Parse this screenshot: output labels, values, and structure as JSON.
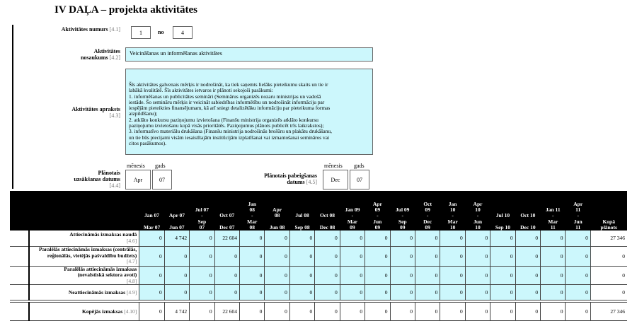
{
  "title": "IV DAĻA – projekta aktivitātes",
  "activity_number": {
    "label": "Aktivitātes numurs",
    "ref": "[4.1]",
    "value": "1",
    "sep": "no",
    "total": "4"
  },
  "activity_name": {
    "label1": "Aktivitātes",
    "label2": "nosaukums",
    "ref": "[4.2]",
    "value": "Veicināšanas un informēšanas aktivitātes"
  },
  "activity_description": {
    "label": "Aktivitātes apraksts",
    "ref": "[4.3]",
    "lines": [
      "Šīs aktivitātes galvenais mērķis ir nodrošināt, ka tiek saņemts lielāks pieteikumu skaits un tie ir",
      "labākā kvalitātē. Šīs aktivitātes ietvaros ir plānoti sekojoši pasākumi:",
      "1. informēšanas un publicitātes semināri (Seminārus organizēs nozaru ministrijas un vadošā",
      "iestāde. Šo semināru mērķis ir veicināt sabiedrības informētību un nodrošināt informāciju par",
      "iespējām pieteikties finansējumam, kā arī sniegt detalizētāku informāciju par pieteikuma formas",
      "aizpildīšanu);",
      "2. atklāto konkursu paziņojumu izvietošana (Finanšu ministrija organizēs atklāto konkursu",
      "paziņojumu izvietošanu kopā visās prioritātēs. Paziņojumus plānots publicēt trīs laikrakstos);",
      "3. informatīvo materiālu drukāšana (Finanšu ministrija nodrošinās brošūru un plakātu drukāšanu,",
      "un tie būs piecijami visām iesaistītajām institūcijām izplatīšanai vai izmantošanai semināros vai",
      "citos pasākumos)."
    ]
  },
  "start": {
    "label1": "Plānotais",
    "label2": "uzsākšanas datums",
    "ref": "[4.4]",
    "month_label": "mēnesis",
    "year_label": "gads",
    "month": "Apr",
    "year": "07"
  },
  "end": {
    "label1": "Plānotais pabeigšanas",
    "label2": "datums",
    "ref": "[4.5]",
    "month_label": "mēnesis",
    "year_label": "gads",
    "month": "Dec",
    "year": "07"
  },
  "finance": {
    "periods": [
      [
        "Jan 07",
        "",
        "Mar 07"
      ],
      [
        "Apr 07",
        "",
        "Jun 07"
      ],
      [
        "Jul 07",
        "-",
        "Sep",
        "07"
      ],
      [
        "Oct 07",
        "",
        "Dec 07"
      ],
      [
        "Jan",
        "08",
        "-",
        "Mar",
        "08"
      ],
      [
        "Apr",
        "08",
        "",
        "Jun 08"
      ],
      [
        "Jul 08",
        "",
        "Sep 08"
      ],
      [
        "Oct 08",
        "",
        "Dec 08"
      ],
      [
        "Jan 09",
        "-",
        "Mar",
        "09"
      ],
      [
        "Apr",
        "09",
        "-",
        "Jun",
        "09"
      ],
      [
        "Jul 09",
        "-",
        "Sep",
        "09"
      ],
      [
        "Oct",
        "09",
        "-",
        "Dec",
        "09"
      ],
      [
        "Jan",
        "10",
        "-",
        "Mar",
        "10"
      ],
      [
        "Apr",
        "10",
        "-",
        "Jun",
        "10"
      ],
      [
        "Jul 10",
        "",
        "Sep 10"
      ],
      [
        "Oct 10",
        "",
        "Dec 10"
      ],
      [
        "Jan 11",
        "-",
        "Mar",
        "11"
      ],
      [
        "Apr",
        "11",
        "-",
        "Jun",
        "11"
      ]
    ],
    "total_header": [
      "Kopā",
      "plānots"
    ],
    "rows": [
      {
        "label": [
          "Attiecināmās izmaksas naudā"
        ],
        "ref": "[4.6]",
        "values": [
          "0",
          "4 742",
          "0",
          "22 604",
          "0",
          "0",
          "0",
          "0",
          "0",
          "0",
          "0",
          "0",
          "0",
          "0",
          "0",
          "0",
          "0",
          "0"
        ],
        "total": "27 346",
        "white": false
      },
      {
        "label": [
          "Paralēlās attiecināmās izmaksas (centrālās,",
          "reģionālās, vietējās pašvaldību budžets)"
        ],
        "ref": "[4.7]",
        "values": [
          "0",
          "0",
          "0",
          "0",
          "0",
          "0",
          "0",
          "0",
          "0",
          "0",
          "0",
          "0",
          "0",
          "0",
          "0",
          "0",
          "0",
          "0"
        ],
        "total": "0",
        "white": false
      },
      {
        "label": [
          "Paralēlās attiecināmās izmaksas",
          "(nevalstiskā sektora avoti)"
        ],
        "ref": "[4.8]",
        "values": [
          "0",
          "0",
          "0",
          "0",
          "0",
          "0",
          "0",
          "0",
          "0",
          "0",
          "0",
          "0",
          "0",
          "0",
          "0",
          "0",
          "0",
          "0"
        ],
        "total": "0",
        "white": false
      },
      {
        "label": [
          "Neattiecināmās izmaksas"
        ],
        "ref": "[4.9]",
        "values": [
          "0",
          "0",
          "0",
          "0",
          "0",
          "0",
          "0",
          "0",
          "0",
          "0",
          "0",
          "0",
          "0",
          "0",
          "0",
          "0",
          "0",
          "0"
        ],
        "total": "0",
        "white": false
      },
      {
        "label": [
          "Kopējās izmaksas"
        ],
        "ref": "[4.10]",
        "values": [
          "0",
          "4 742",
          "0",
          "22 604",
          "0",
          "0",
          "0",
          "0",
          "0",
          "0",
          "0",
          "0",
          "0",
          "0",
          "0",
          "0",
          "0",
          "0"
        ],
        "total": "27 346",
        "white": true
      }
    ]
  }
}
